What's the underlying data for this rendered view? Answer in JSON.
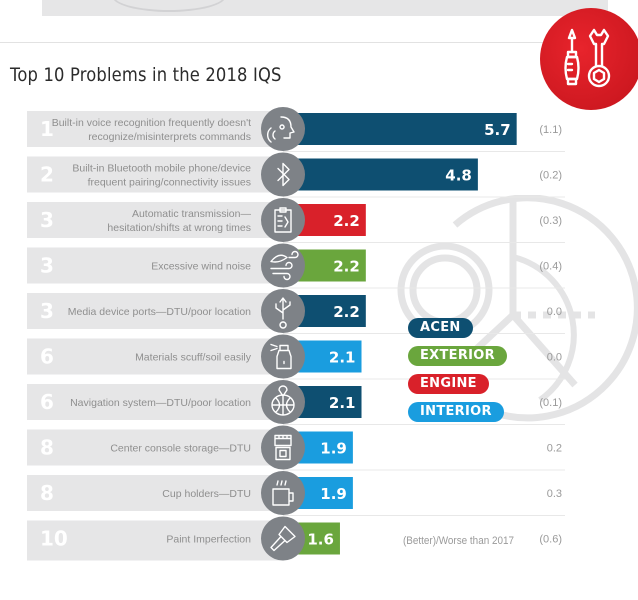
{
  "header": {
    "title": "Top 10 Problems in the 2018 IQS",
    "badge_icon": "tools-icon"
  },
  "colors": {
    "ACEN": "#0e4f71",
    "EXTERIOR": "#6aa63d",
    "ENGINE": "#d9212a",
    "INTERIOR": "#1a9ddf",
    "row_panel": "#e6e6e7",
    "icon_circle": "#7e8287"
  },
  "legend": [
    {
      "label": "ACEN",
      "category": "ACEN"
    },
    {
      "label": "EXTERIOR",
      "category": "EXTERIOR"
    },
    {
      "label": "ENGINE",
      "category": "ENGINE"
    },
    {
      "label": "INTERIOR",
      "category": "INTERIOR"
    }
  ],
  "footnote": "(Better)/Worse than 2017",
  "chart_data": {
    "type": "bar",
    "orientation": "horizontal",
    "title": "Top 10 Problems in the 2018 IQS",
    "xlabel": "",
    "ylabel": "",
    "xlim": [
      0,
      6
    ],
    "grid": false,
    "legend_position": "right-middle",
    "categories": [
      "Built-in voice recognition frequently doesn't recognize/misinterprets commands",
      "Built-in Bluetooth mobile phone/device frequent pairing/connectivity issues",
      "Automatic transmission—hesitation/shifts at wrong times",
      "Excessive wind noise",
      "Media device ports—DTU/poor location",
      "Materials scuff/soil easily",
      "Navigation system—DTU/poor location",
      "Center console storage—DTU",
      "Cup holders—DTU",
      "Paint Imperfection"
    ],
    "rows": [
      {
        "rank": "1",
        "label_lines": [
          "Built-in voice recognition frequently doesn't",
          "recognize/misinterprets commands"
        ],
        "value": 5.7,
        "value_label": "5.7",
        "category": "ACEN",
        "icon": "voice-recognition-icon",
        "change": "(1.1)"
      },
      {
        "rank": "2",
        "label_lines": [
          "Built-in Bluetooth mobile phone/device",
          "frequent pairing/connectivity issues"
        ],
        "value": 4.8,
        "value_label": "4.8",
        "category": "ACEN",
        "icon": "bluetooth-icon",
        "change": "(0.2)"
      },
      {
        "rank": "3",
        "label_lines": [
          "Automatic transmission—",
          "hesitation/shifts at wrong times"
        ],
        "value": 2.2,
        "value_label": "2.2",
        "category": "ENGINE",
        "icon": "transmission-clipboard-icon",
        "change": "(0.3)"
      },
      {
        "rank": "3",
        "label_lines": [
          "Excessive wind noise"
        ],
        "value": 2.2,
        "value_label": "2.2",
        "category": "EXTERIOR",
        "icon": "wind-icon",
        "change": "(0.4)"
      },
      {
        "rank": "3",
        "label_lines": [
          "Media device ports—DTU/poor location"
        ],
        "value": 2.2,
        "value_label": "2.2",
        "category": "ACEN",
        "icon": "usb-icon",
        "change": "0.0"
      },
      {
        "rank": "6",
        "label_lines": [
          "Materials scuff/soil easily"
        ],
        "value": 2.1,
        "value_label": "2.1",
        "category": "INTERIOR",
        "icon": "spray-bottle-icon",
        "change": "0.0"
      },
      {
        "rank": "6",
        "label_lines": [
          "Navigation system—DTU/poor location"
        ],
        "value": 2.1,
        "value_label": "2.1",
        "category": "ACEN",
        "icon": "navigation-globe-icon",
        "change": "(0.1)"
      },
      {
        "rank": "8",
        "label_lines": [
          "Center console storage—DTU"
        ],
        "value": 1.9,
        "value_label": "1.9",
        "category": "INTERIOR",
        "icon": "console-storage-icon",
        "change": "0.2"
      },
      {
        "rank": "8",
        "label_lines": [
          "Cup holders—DTU"
        ],
        "value": 1.9,
        "value_label": "1.9",
        "category": "INTERIOR",
        "icon": "cup-holder-icon",
        "change": "0.3"
      },
      {
        "rank": "10",
        "label_lines": [
          "Paint Imperfection"
        ],
        "value": 1.6,
        "value_label": "1.6",
        "category": "EXTERIOR",
        "icon": "paint-brush-icon",
        "change": "(0.6)"
      }
    ],
    "change_column_label": "(Better)/Worse than 2017"
  }
}
